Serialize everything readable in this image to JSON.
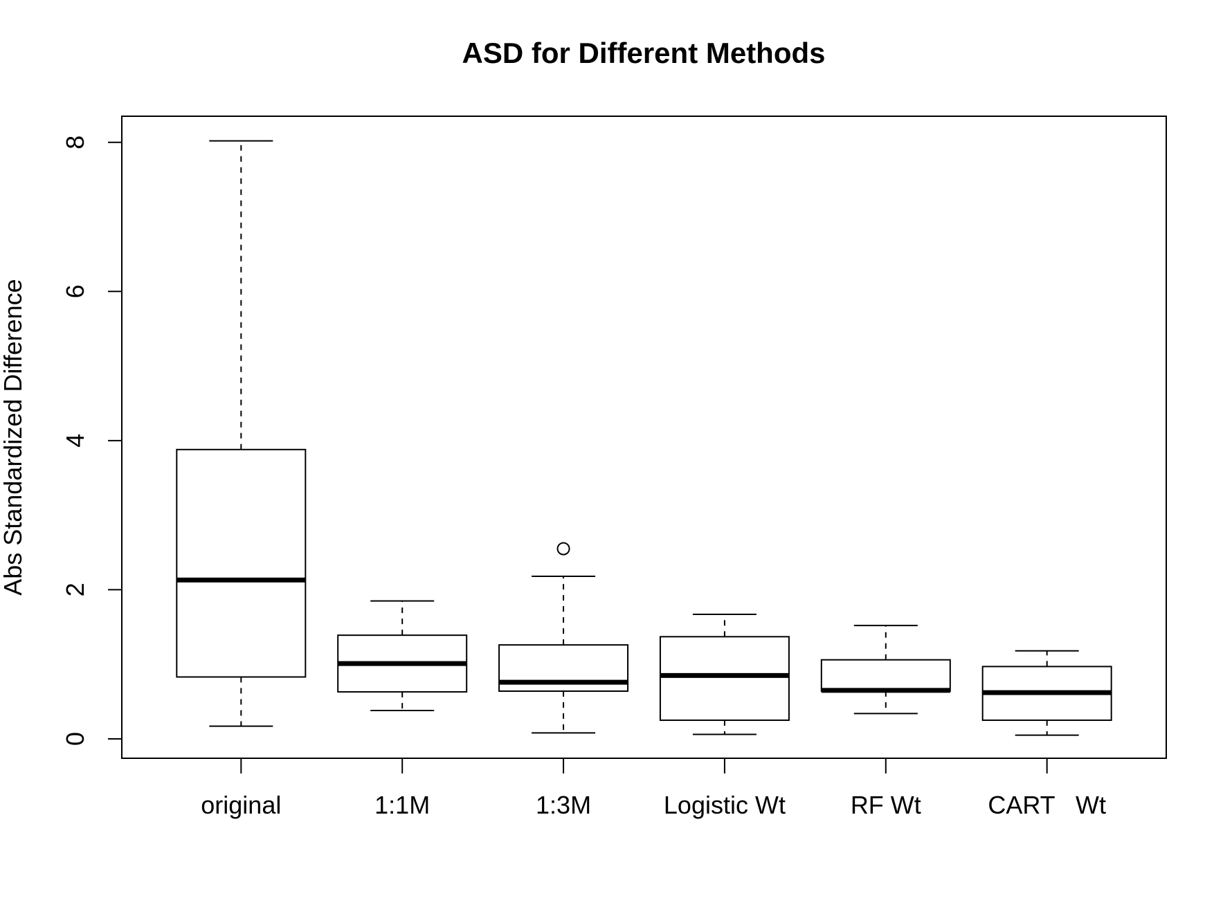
{
  "chart_data": {
    "type": "boxplot",
    "title": "ASD for Different Methods",
    "xlabel": "",
    "ylabel": "Abs Standardized Difference",
    "ylim": [
      -0.26,
      8.35
    ],
    "yticks": [
      0,
      2,
      4,
      6,
      8
    ],
    "grid": false,
    "legend": "none",
    "colors": {
      "box_fill": "#ffffff",
      "stroke": "#000000",
      "background": "#ffffff"
    },
    "categories": [
      "original",
      "1:1M",
      "1:3M",
      "Logistic Wt",
      "RF Wt",
      "CART   Wt"
    ],
    "boxes": [
      {
        "label": "original",
        "whisker_low": 0.17,
        "q1": 0.83,
        "median": 2.13,
        "q3": 3.88,
        "whisker_high": 8.02,
        "outliers": []
      },
      {
        "label": "1:1M",
        "whisker_low": 0.38,
        "q1": 0.63,
        "median": 1.01,
        "q3": 1.39,
        "whisker_high": 1.85,
        "outliers": []
      },
      {
        "label": "1:3M",
        "whisker_low": 0.08,
        "q1": 0.64,
        "median": 0.76,
        "q3": 1.26,
        "whisker_high": 2.18,
        "outliers": [
          2.55
        ]
      },
      {
        "label": "Logistic Wt",
        "whisker_low": 0.06,
        "q1": 0.25,
        "median": 0.85,
        "q3": 1.37,
        "whisker_high": 1.67,
        "outliers": []
      },
      {
        "label": "RF Wt",
        "whisker_low": 0.34,
        "q1": 0.64,
        "median": 0.65,
        "q3": 1.06,
        "whisker_high": 1.52,
        "outliers": []
      },
      {
        "label": "CART   Wt",
        "whisker_low": 0.05,
        "q1": 0.25,
        "median": 0.62,
        "q3": 0.97,
        "whisker_high": 1.18,
        "outliers": []
      }
    ]
  }
}
